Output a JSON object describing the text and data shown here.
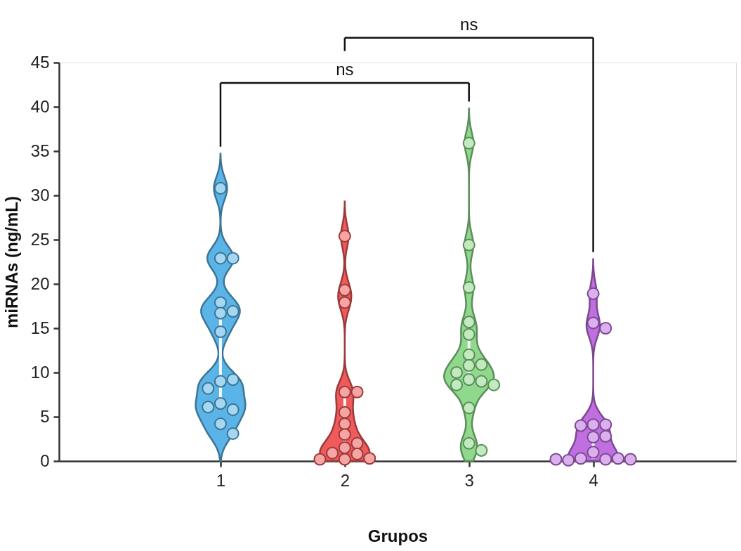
{
  "chart_data": {
    "type": "scatter",
    "xlabel": "Grupos",
    "ylabel": "miRNAs (ng/mL)",
    "categories": [
      "1",
      "2",
      "3",
      "4"
    ],
    "ylim": [
      0,
      45
    ],
    "yticks": [
      0,
      5,
      10,
      15,
      20,
      25,
      30,
      35,
      40,
      45
    ],
    "grid": false,
    "annotations": [
      "ns",
      "ns"
    ],
    "series": [
      {
        "x": [
          "1",
          "1",
          "1",
          "1",
          "1",
          "1",
          "1",
          "1",
          "1",
          "1",
          "1",
          "1",
          "1",
          "1",
          "1"
        ],
        "color": "#a5d6f2",
        "values": [
          30.8,
          22.9,
          22.9,
          17.9,
          16.7,
          16.9,
          14.6,
          9.0,
          9.2,
          8.2,
          6.5,
          5.8,
          6.1,
          4.2,
          3.1
        ]
      },
      {
        "x": [
          "2",
          "2",
          "2",
          "2",
          "2",
          "2",
          "2",
          "2",
          "2",
          "2",
          "2",
          "2",
          "2",
          "2",
          "2"
        ],
        "color": "#f7a4a4",
        "values": [
          25.4,
          19.3,
          17.9,
          7.8,
          7.8,
          5.5,
          4.2,
          3.0,
          2.0,
          1.5,
          0.9,
          0.8,
          0.2,
          0.3,
          0.2
        ]
      },
      {
        "x": [
          "3",
          "3",
          "3",
          "3",
          "3",
          "3",
          "3",
          "3",
          "3",
          "3",
          "3",
          "3",
          "3",
          "3",
          "3",
          "3"
        ],
        "color": "#c1eabf",
        "values": [
          35.9,
          24.4,
          19.6,
          15.7,
          14.3,
          12.0,
          10.9,
          10.8,
          10.0,
          9.2,
          9.0,
          8.6,
          8.6,
          6.0,
          2.0,
          1.2
        ]
      },
      {
        "x": [
          "4",
          "4",
          "4",
          "4",
          "4",
          "4",
          "4",
          "4",
          "4",
          "4",
          "4",
          "4",
          "4",
          "4",
          "4"
        ],
        "color": "#dcb0ee",
        "values": [
          18.9,
          15.6,
          15.0,
          4.1,
          4.1,
          4.0,
          2.7,
          2.8,
          1.0,
          0.2,
          0.3,
          0.3,
          0.1,
          0.2,
          0.2
        ]
      }
    ]
  }
}
